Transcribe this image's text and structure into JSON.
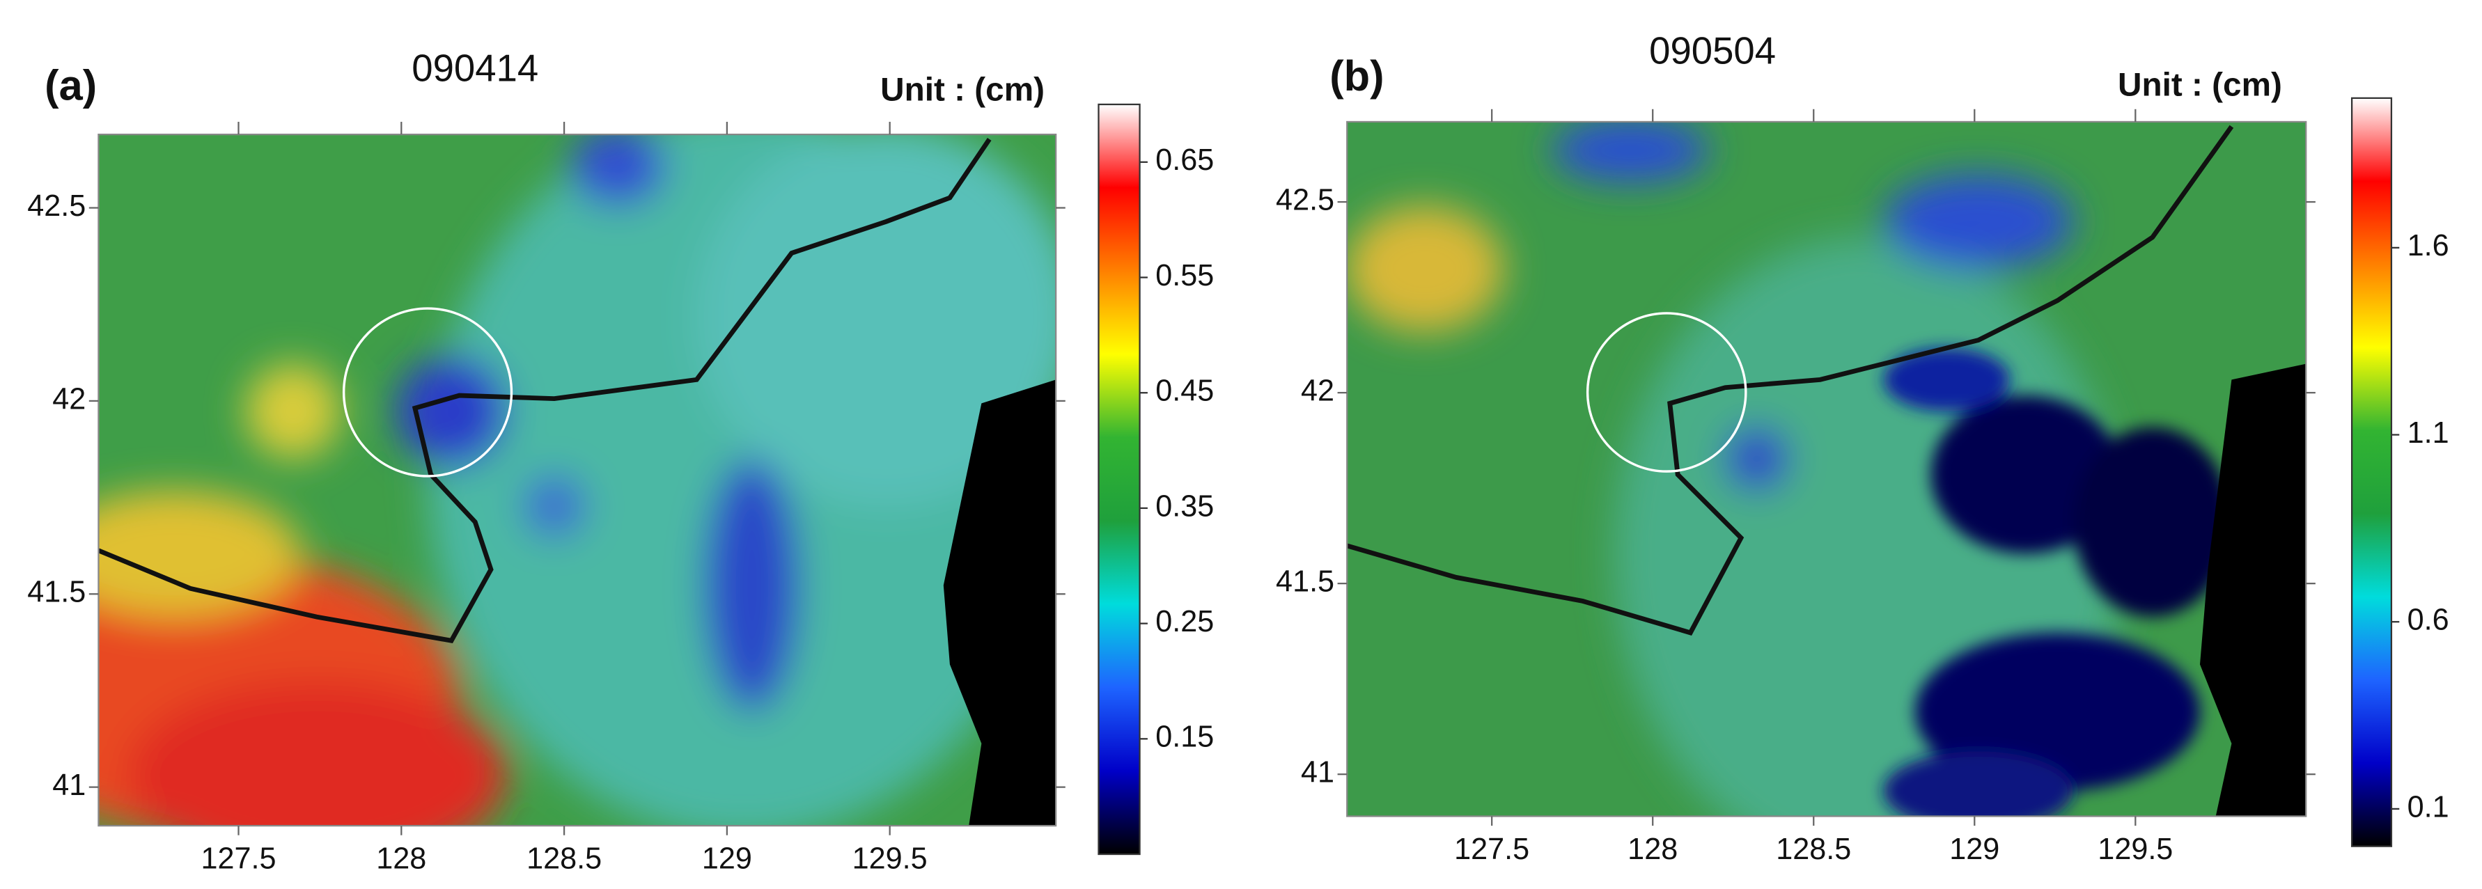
{
  "chart_data": [
    {
      "type": "map",
      "panel_label": "(a)",
      "title": "090414",
      "unit_label": "Unit : (cm)",
      "xlim": [
        127.07,
        130.01
      ],
      "xticks": [
        127.5,
        128,
        128.5,
        129,
        129.5
      ],
      "ylim": [
        40.9,
        42.69
      ],
      "yticks": [
        41,
        41.5,
        42,
        42.5
      ],
      "colorbar_lim": [
        0.05,
        0.7
      ],
      "colorbar_ticks": [
        0.15,
        0.25,
        0.35,
        0.45,
        0.55,
        0.65
      ],
      "colormap": [
        "#000000",
        "#0000c8",
        "#1e64ff",
        "#00dcdc",
        "#1fa03c",
        "#32b432",
        "#ffff00",
        "#ff8000",
        "#ff0000",
        "#ffffff"
      ]
    },
    {
      "type": "map",
      "panel_label": "(b)",
      "title": "090504",
      "unit_label": "Unit : (cm)",
      "xlim": [
        127.05,
        130.03
      ],
      "xticks": [
        127.5,
        128,
        128.5,
        129,
        129.5
      ],
      "ylim": [
        40.89,
        42.71
      ],
      "yticks": [
        41,
        41.5,
        42,
        42.5
      ],
      "colorbar_lim": [
        0,
        2
      ],
      "colorbar_ticks": [
        0.1,
        0.6,
        1.1,
        1.6
      ],
      "colormap": [
        "#000000",
        "#0000c8",
        "#1e64ff",
        "#00dcdc",
        "#1fa03c",
        "#32b432",
        "#ffff00",
        "#ff8000",
        "#ff0000",
        "#ffffff"
      ]
    }
  ]
}
